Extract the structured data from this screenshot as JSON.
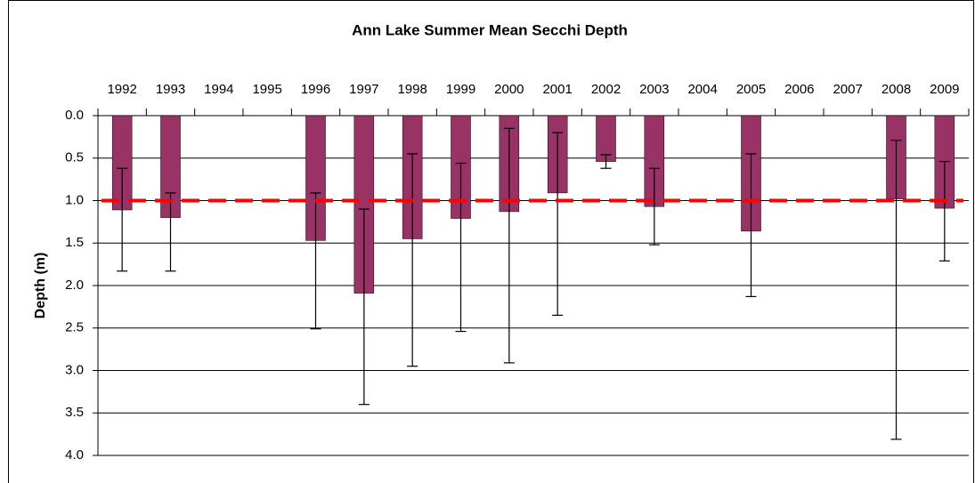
{
  "chart_data": {
    "type": "bar",
    "title": "Ann Lake Summer Mean Secchi Depth",
    "y_label": "Depth (m)",
    "categories": [
      "1992",
      "1993",
      "1994",
      "1995",
      "1996",
      "1997",
      "1998",
      "1999",
      "2000",
      "2001",
      "2002",
      "2003",
      "2004",
      "2005",
      "2006",
      "2007",
      "2008",
      "2009"
    ],
    "values": [
      1.11,
      1.2,
      null,
      null,
      1.47,
      2.09,
      1.45,
      1.21,
      1.13,
      0.91,
      0.54,
      1.07,
      null,
      1.36,
      null,
      null,
      0.98,
      1.09
    ],
    "error_min": [
      0.62,
      0.91,
      null,
      null,
      0.91,
      1.1,
      0.45,
      0.56,
      0.15,
      0.2,
      0.46,
      0.62,
      null,
      0.45,
      null,
      null,
      0.29,
      0.54
    ],
    "error_max": [
      1.83,
      1.83,
      null,
      null,
      2.51,
      3.4,
      2.95,
      2.54,
      2.91,
      2.35,
      0.62,
      1.52,
      null,
      2.13,
      null,
      null,
      3.81,
      1.71
    ],
    "color": "#993366",
    "reference_line": 1.0,
    "reference_color": "#ff0000",
    "y_inverted": true,
    "ylim": [
      0,
      4
    ],
    "yticks": [
      {
        "value": 0,
        "label": "0.0"
      },
      {
        "value": 0.5,
        "label": "0.5"
      },
      {
        "value": 1,
        "label": "1.0"
      },
      {
        "value": 1.5,
        "label": "1.5"
      },
      {
        "value": 2,
        "label": "2.0"
      },
      {
        "value": 2.5,
        "label": "2.5"
      },
      {
        "value": 3,
        "label": "3.0"
      },
      {
        "value": 3.5,
        "label": "3.5"
      },
      {
        "value": 4,
        "label": "4.0"
      }
    ],
    "grid": true
  }
}
